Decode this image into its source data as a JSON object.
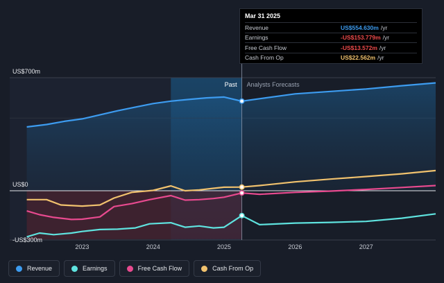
{
  "chart_data": {
    "type": "line",
    "y_unit_labels": {
      "top": "US$700m",
      "zero": "US$0",
      "bottom": "-US$300m"
    },
    "ylim": [
      -300,
      700
    ],
    "x_ticks": [
      "2023",
      "2024",
      "2025",
      "2026",
      "2027"
    ],
    "x_tick_values": [
      2023.0,
      2024.0,
      2025.0,
      2026.0,
      2027.0
    ],
    "xlim": [
      2021.98,
      2027.98
    ],
    "past_label": "Past",
    "forecast_label": "Analysts Forecasts",
    "past_end": 2025.25,
    "highlight_start": 2024.25,
    "series": [
      {
        "name": "Revenue",
        "color": "#3d9cf0",
        "fill": true,
        "points": [
          [
            2022.22,
            395
          ],
          [
            2022.5,
            410
          ],
          [
            2022.75,
            430
          ],
          [
            2023.0,
            445
          ],
          [
            2023.25,
            470
          ],
          [
            2023.5,
            495
          ],
          [
            2023.75,
            518
          ],
          [
            2024.0,
            540
          ],
          [
            2024.25,
            555
          ],
          [
            2024.5,
            565
          ],
          [
            2024.75,
            575
          ],
          [
            2025.0,
            580
          ],
          [
            2025.25,
            554.63
          ],
          [
            2025.5,
            570
          ],
          [
            2025.75,
            585
          ],
          [
            2026.0,
            600
          ],
          [
            2026.5,
            615
          ],
          [
            2027.0,
            630
          ],
          [
            2027.5,
            650
          ],
          [
            2027.98,
            668
          ]
        ]
      },
      {
        "name": "Earnings",
        "color": "#5fe3df",
        "fill": false,
        "points": [
          [
            2022.22,
            -285
          ],
          [
            2022.4,
            -262
          ],
          [
            2022.6,
            -272
          ],
          [
            2022.85,
            -262
          ],
          [
            2023.0,
            -252
          ],
          [
            2023.25,
            -240
          ],
          [
            2023.5,
            -238
          ],
          [
            2023.75,
            -230
          ],
          [
            2023.95,
            -205
          ],
          [
            2024.25,
            -198
          ],
          [
            2024.45,
            -226
          ],
          [
            2024.65,
            -218
          ],
          [
            2024.85,
            -230
          ],
          [
            2025.0,
            -226
          ],
          [
            2025.25,
            -153.78
          ],
          [
            2025.5,
            -210
          ],
          [
            2026.0,
            -200
          ],
          [
            2026.5,
            -196
          ],
          [
            2027.0,
            -190
          ],
          [
            2027.5,
            -170
          ],
          [
            2027.98,
            -143
          ]
        ]
      },
      {
        "name": "Free Cash Flow",
        "color": "#e84a8f",
        "fill": false,
        "points": [
          [
            2022.22,
            -125
          ],
          [
            2022.4,
            -148
          ],
          [
            2022.6,
            -165
          ],
          [
            2022.85,
            -178
          ],
          [
            2023.0,
            -176
          ],
          [
            2023.25,
            -162
          ],
          [
            2023.45,
            -98
          ],
          [
            2023.7,
            -80
          ],
          [
            2023.95,
            -55
          ],
          [
            2024.25,
            -30
          ],
          [
            2024.45,
            -58
          ],
          [
            2024.65,
            -55
          ],
          [
            2024.85,
            -48
          ],
          [
            2025.0,
            -40
          ],
          [
            2025.25,
            -13.57
          ],
          [
            2025.5,
            -22
          ],
          [
            2026.0,
            -10
          ],
          [
            2026.5,
            -2
          ],
          [
            2027.0,
            8
          ],
          [
            2027.5,
            20
          ],
          [
            2027.98,
            32
          ]
        ]
      },
      {
        "name": "Cash From Op",
        "color": "#f1c26e",
        "fill": false,
        "points": [
          [
            2022.22,
            -55
          ],
          [
            2022.5,
            -55
          ],
          [
            2022.7,
            -88
          ],
          [
            2023.0,
            -95
          ],
          [
            2023.25,
            -88
          ],
          [
            2023.45,
            -45
          ],
          [
            2023.7,
            -10
          ],
          [
            2024.0,
            2
          ],
          [
            2024.25,
            30
          ],
          [
            2024.45,
            0
          ],
          [
            2024.65,
            5
          ],
          [
            2024.85,
            15
          ],
          [
            2025.0,
            22
          ],
          [
            2025.25,
            22.56
          ],
          [
            2025.5,
            32
          ],
          [
            2026.0,
            55
          ],
          [
            2026.5,
            72
          ],
          [
            2027.0,
            88
          ],
          [
            2027.5,
            105
          ],
          [
            2027.98,
            125
          ]
        ]
      }
    ],
    "legend": [
      "Revenue",
      "Earnings",
      "Free Cash Flow",
      "Cash From Op"
    ]
  },
  "tooltip": {
    "date": "Mar 31 2025",
    "rows": [
      {
        "name": "Revenue",
        "value": "US$554.630m",
        "unit": "/yr",
        "color": "#3d9cf0"
      },
      {
        "name": "Earnings",
        "value": "-US$153.779m",
        "unit": "/yr",
        "color": "#f04b4b"
      },
      {
        "name": "Free Cash Flow",
        "value": "-US$13.572m",
        "unit": "/yr",
        "color": "#f04b4b"
      },
      {
        "name": "Cash From Op",
        "value": "US$22.562m",
        "unit": "/yr",
        "color": "#f1c26e"
      }
    ]
  },
  "legend_colors": {
    "Revenue": "#3d9cf0",
    "Earnings": "#5fe3df",
    "Free Cash Flow": "#e84a8f",
    "Cash From Op": "#f1c26e"
  }
}
